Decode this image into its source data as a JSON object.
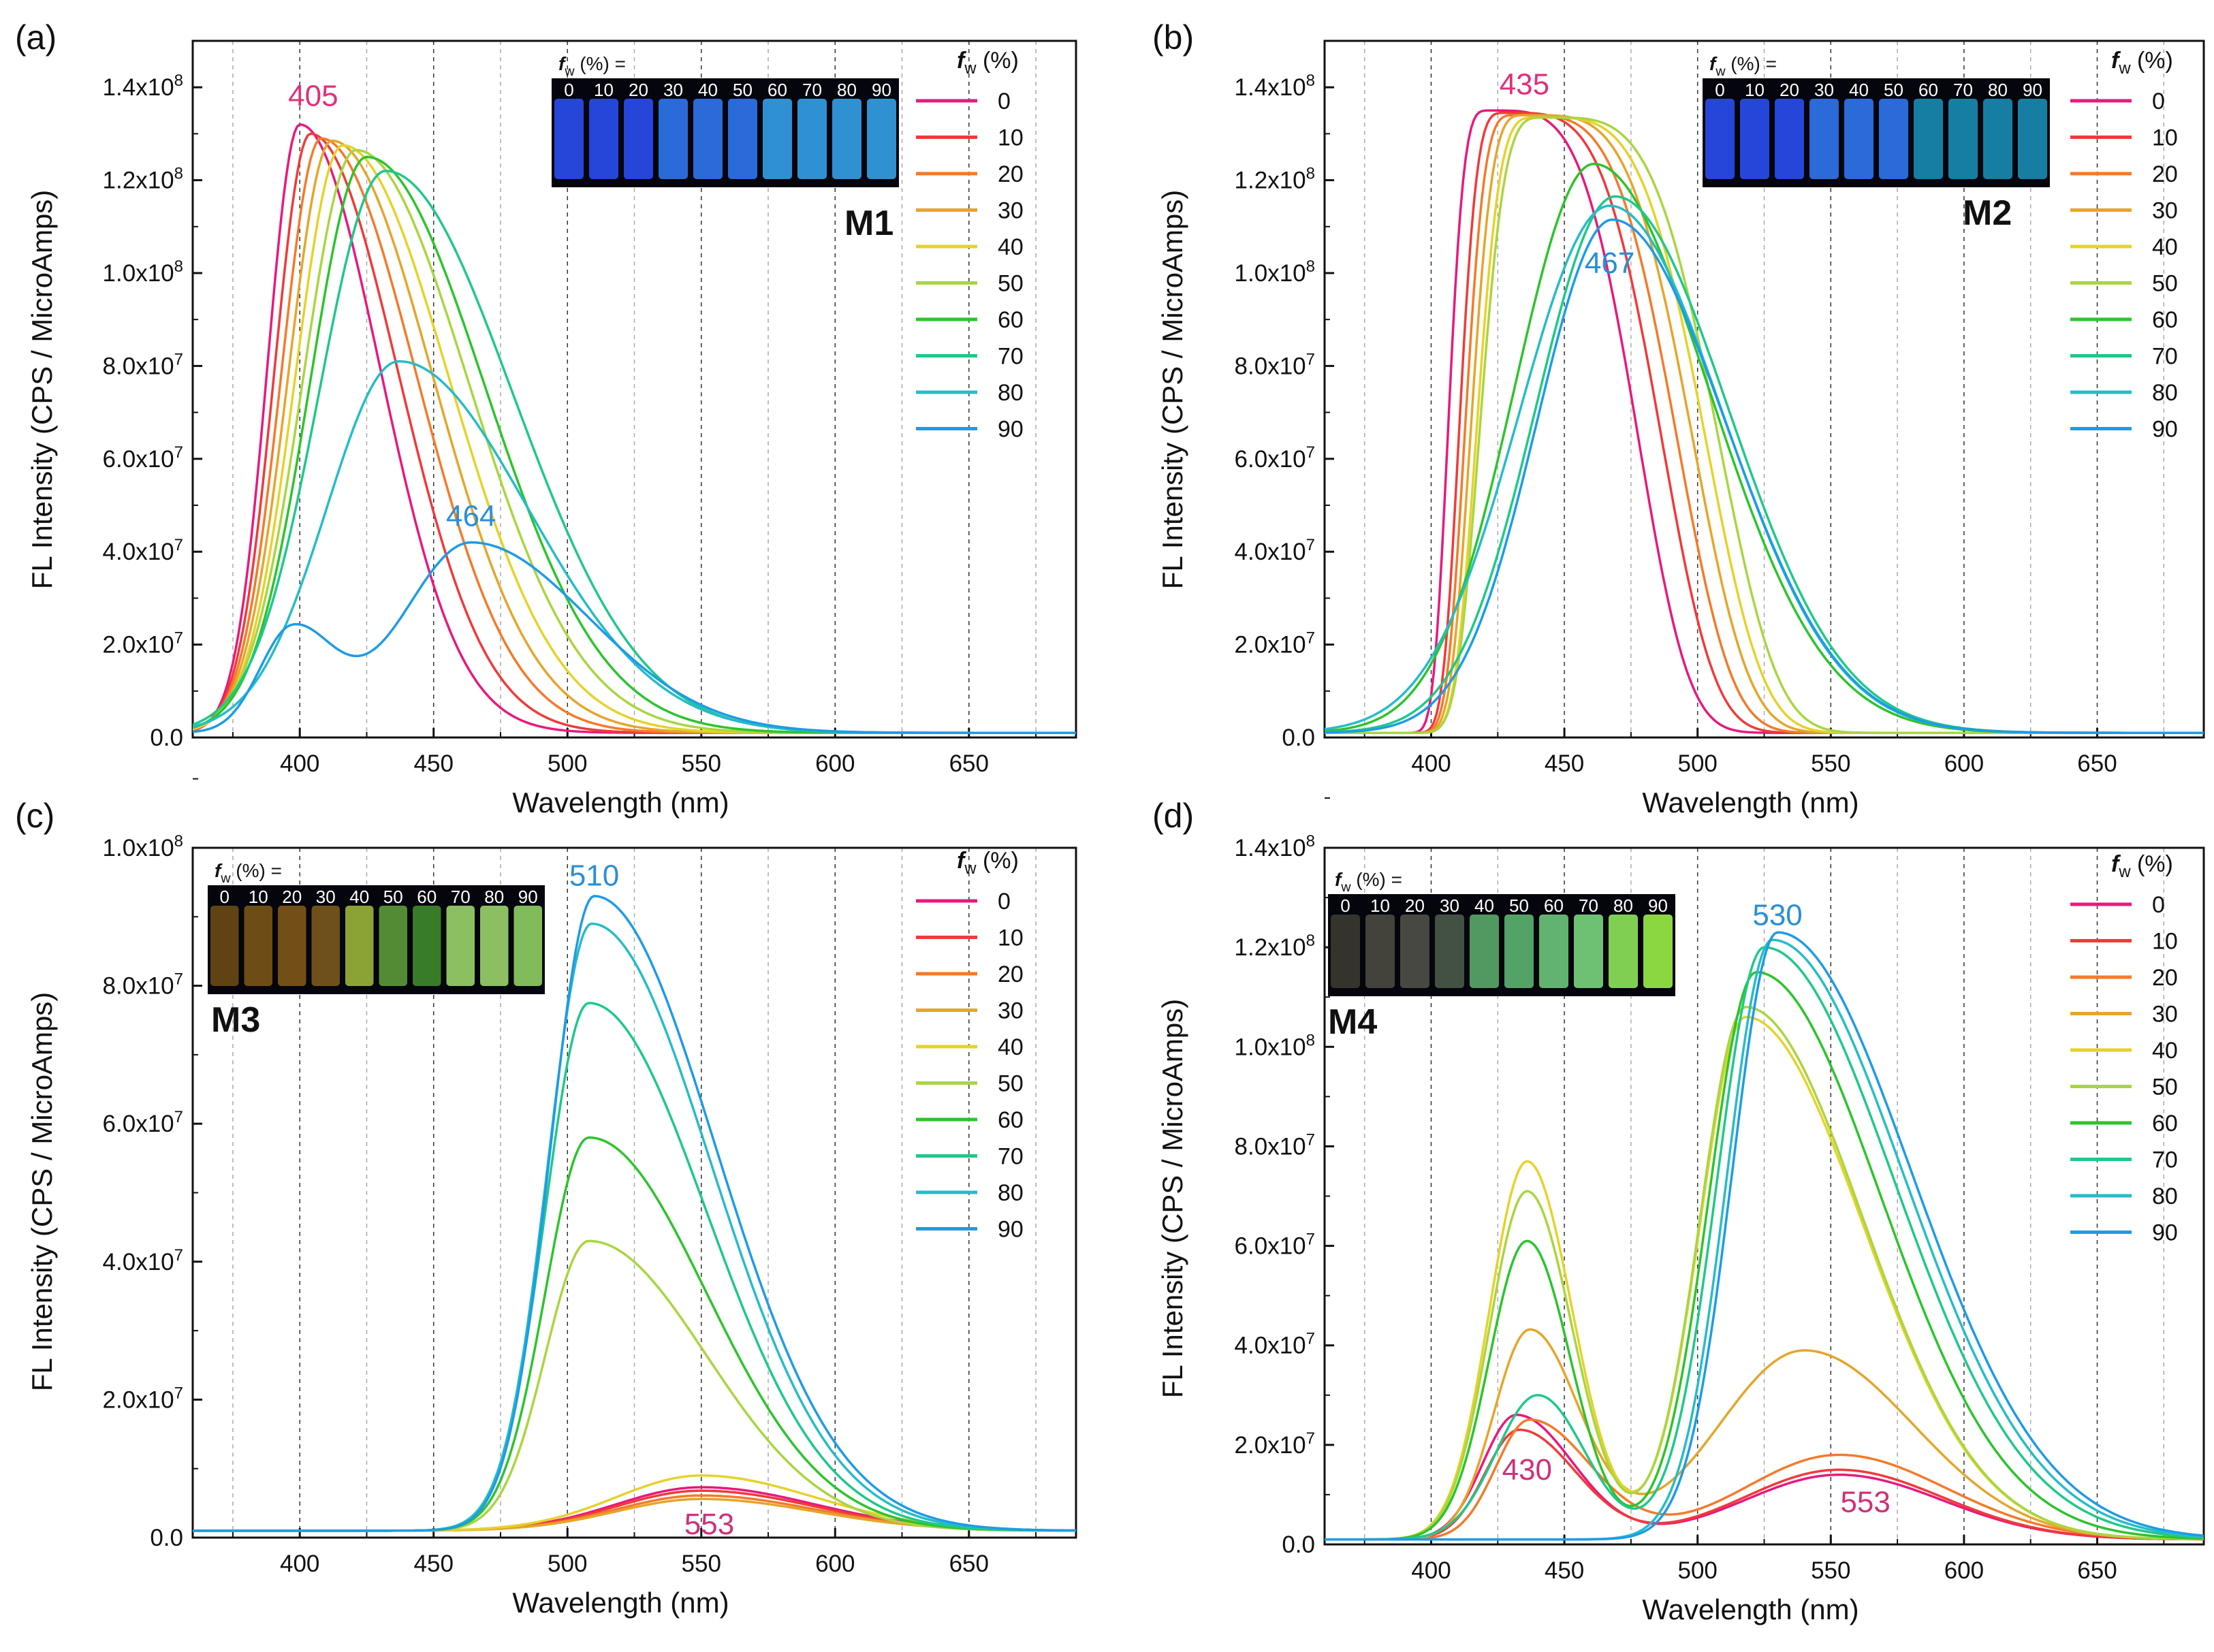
{
  "legend_title": "f_w (%)",
  "fw_levels": [
    "0",
    "10",
    "20",
    "30",
    "40",
    "50",
    "60",
    "70",
    "80",
    "90"
  ],
  "series_colors": [
    "#e8197c",
    "#f03a3a",
    "#f47a2a",
    "#e6a52a",
    "#e6d22a",
    "#a8d640",
    "#2cc42c",
    "#1fc889",
    "#26bcc8",
    "#1e9be6"
  ],
  "vial_labels": [
    "0",
    "10",
    "20",
    "30",
    "40",
    "50",
    "60",
    "70",
    "80",
    "90"
  ],
  "photo_caption": "f_w (%) =",
  "chart_data": [
    {
      "panel": "(a)",
      "sample": "M1",
      "type": "line",
      "xlabel": "Wavelength (nm)",
      "ylabel": "FL Intensity (CPS / MicroAmps)",
      "xlim": [
        360,
        690
      ],
      "ylim": [
        0,
        150000000.0
      ],
      "xticks": [
        "400",
        "450",
        "500",
        "550",
        "600",
        "650"
      ],
      "yticks": [
        "0.0",
        "2.0x10^7",
        "4.0x10^7",
        "6.0x10^7",
        "8.0x10^7",
        "1.0x10^8",
        "1.2x10^8",
        "1.4x10^8"
      ],
      "grid_x": [
        375,
        400,
        425,
        450,
        475,
        500,
        525,
        550,
        575,
        600,
        625,
        650,
        675
      ],
      "annotations": [
        {
          "text": "405",
          "x": 405,
          "y": 136000000.0,
          "color": "#e0307a"
        },
        {
          "text": "464",
          "x": 464,
          "y": 45500000.0,
          "color": "#2a8fd6"
        }
      ],
      "series": [
        {
          "name": "0",
          "peaks": [
            {
              "c": 400,
              "a": 131000000.0,
              "wl": 17,
              "wr": 42
            }
          ]
        },
        {
          "name": "10",
          "peaks": [
            {
              "c": 404,
              "a": 129000000.0,
              "wl": 19,
              "wr": 46
            }
          ]
        },
        {
          "name": "20",
          "peaks": [
            {
              "c": 408,
              "a": 128000000.0,
              "wl": 21,
              "wr": 50
            }
          ]
        },
        {
          "name": "30",
          "peaks": [
            {
              "c": 412,
              "a": 127500000.0,
              "wl": 23,
              "wr": 53
            }
          ]
        },
        {
          "name": "40",
          "peaks": [
            {
              "c": 416,
              "a": 126500000.0,
              "wl": 25,
              "wr": 56
            }
          ]
        },
        {
          "name": "50",
          "peaks": [
            {
              "c": 421,
              "a": 125500000.0,
              "wl": 28,
              "wr": 59
            }
          ]
        },
        {
          "name": "60",
          "peaks": [
            {
              "c": 425,
              "a": 124000000.0,
              "wl": 30,
              "wr": 62
            }
          ]
        },
        {
          "name": "70",
          "peaks": [
            {
              "c": 432,
              "a": 121000000.0,
              "wl": 35,
              "wr": 67
            }
          ]
        },
        {
          "name": "80",
          "peaks": [
            {
              "c": 437,
              "a": 80000000.0,
              "wl": 38,
              "wr": 68
            }
          ]
        },
        {
          "name": "90",
          "peaks": [
            {
              "c": 397,
              "a": 22000000.0,
              "wl": 17,
              "wr": 22
            },
            {
              "c": 464,
              "a": 41000000.0,
              "wl": 36,
              "wr": 62
            }
          ]
        }
      ]
    },
    {
      "panel": "(b)",
      "sample": "M2",
      "type": "line",
      "xlabel": "Wavelength (nm)",
      "ylabel": "FL Intensity (CPS / MicroAmps)",
      "xlim": [
        360,
        690
      ],
      "ylim": [
        0,
        150000000.0
      ],
      "xticks": [
        "400",
        "450",
        "500",
        "550",
        "600",
        "650"
      ],
      "yticks": [
        "0.0",
        "2.0x10^7",
        "4.0x10^7",
        "6.0x10^7",
        "8.0x10^7",
        "1.0x10^8",
        "1.2x10^8",
        "1.4x10^8"
      ],
      "grid_x": [
        375,
        400,
        425,
        450,
        475,
        500,
        525,
        550,
        575,
        600,
        625,
        650,
        675
      ],
      "annotations": [
        {
          "text": "435",
          "x": 435,
          "y": 138500000.0,
          "color": "#e0307a"
        },
        {
          "text": "467",
          "x": 467,
          "y": 100000000.0,
          "color": "#2a8fd6"
        }
      ],
      "series": [
        {
          "name": "0",
          "peaks": [
            {
              "c": 422,
              "a": 134000000.0,
              "wl": 17,
              "wr": 60,
              "p": 4
            }
          ]
        },
        {
          "name": "10",
          "peaks": [
            {
              "c": 428,
              "a": 133500000.0,
              "wl": 19,
              "wr": 63,
              "p": 4
            }
          ]
        },
        {
          "name": "20",
          "peaks": [
            {
              "c": 432,
              "a": 133000000.0,
              "wl": 21,
              "wr": 65,
              "p": 4
            }
          ]
        },
        {
          "name": "30",
          "peaks": [
            {
              "c": 436,
              "a": 133000000.0,
              "wl": 23,
              "wr": 67,
              "p": 4
            }
          ]
        },
        {
          "name": "40",
          "peaks": [
            {
              "c": 440,
              "a": 132500000.0,
              "wl": 25,
              "wr": 68,
              "p": 4
            }
          ]
        },
        {
          "name": "50",
          "peaks": [
            {
              "c": 443,
              "a": 132500000.0,
              "wl": 27,
              "wr": 70,
              "p": 4
            }
          ]
        },
        {
          "name": "60",
          "peaks": [
            {
              "c": 461,
              "a": 122500000.0,
              "wl": 42,
              "wr": 61
            }
          ]
        },
        {
          "name": "70",
          "peaks": [
            {
              "c": 469,
              "a": 115500000.0,
              "wl": 42,
              "wr": 60
            }
          ]
        },
        {
          "name": "80",
          "peaks": [
            {
              "c": 467,
              "a": 113500000.0,
              "wl": 48,
              "wr": 60
            }
          ]
        },
        {
          "name": "90",
          "peaks": [
            {
              "c": 468,
              "a": 110500000.0,
              "wl": 40,
              "wr": 60
            }
          ]
        }
      ]
    },
    {
      "panel": "(c)",
      "sample": "M3",
      "type": "line",
      "xlabel": "Wavelength (nm)",
      "ylabel": "FL Intensity (CPS / MicroAmps)",
      "xlim": [
        360,
        690
      ],
      "ylim": [
        0,
        100000000.0
      ],
      "xticks": [
        "400",
        "450",
        "500",
        "550",
        "600",
        "650"
      ],
      "yticks": [
        "0.0",
        "2.0x10^7",
        "4.0x10^7",
        "6.0x10^7",
        "8.0x10^7",
        "1.0x10^8"
      ],
      "grid_x": [
        375,
        400,
        425,
        450,
        475,
        500,
        525,
        550,
        575,
        600,
        625,
        650,
        675
      ],
      "annotations": [
        {
          "text": "510",
          "x": 510,
          "y": 94500000.0,
          "color": "#2a8fd6"
        },
        {
          "text": "553",
          "x": 553,
          "y": 500000.0,
          "color": "#d0307a"
        }
      ],
      "series": [
        {
          "name": "0",
          "peaks": [
            {
              "c": 550,
              "a": 6300000.0,
              "wl": 45,
              "wr": 60
            }
          ]
        },
        {
          "name": "10",
          "peaks": [
            {
              "c": 550,
              "a": 5800000.0,
              "wl": 45,
              "wr": 60
            }
          ]
        },
        {
          "name": "20",
          "peaks": [
            {
              "c": 550,
              "a": 5100000.0,
              "wl": 45,
              "wr": 60
            }
          ]
        },
        {
          "name": "30",
          "peaks": [
            {
              "c": 550,
              "a": 4600000.0,
              "wl": 45,
              "wr": 60
            }
          ]
        },
        {
          "name": "40",
          "peaks": [
            {
              "c": 550,
              "a": 8000000.0,
              "wl": 45,
              "wr": 60
            }
          ]
        },
        {
          "name": "50",
          "peaks": [
            {
              "c": 508,
              "a": 42000000.0,
              "wl": 23,
              "wr": 62
            }
          ]
        },
        {
          "name": "60",
          "peaks": [
            {
              "c": 508,
              "a": 57000000.0,
              "wl": 23,
              "wr": 62
            }
          ]
        },
        {
          "name": "70",
          "peaks": [
            {
              "c": 508,
              "a": 76500000.0,
              "wl": 23,
              "wr": 62
            }
          ]
        },
        {
          "name": "80",
          "peaks": [
            {
              "c": 509,
              "a": 88000000.0,
              "wl": 23,
              "wr": 63
            }
          ]
        },
        {
          "name": "90",
          "peaks": [
            {
              "c": 510,
              "a": 92000000.0,
              "wl": 23,
              "wr": 64
            }
          ]
        }
      ]
    },
    {
      "panel": "(d)",
      "sample": "M4",
      "type": "line",
      "xlabel": "Wavelength (nm)",
      "ylabel": "FL Intensity (CPS / MicroAmps)",
      "xlim": [
        360,
        690
      ],
      "ylim": [
        0,
        140000000.0
      ],
      "xticks": [
        "400",
        "450",
        "500",
        "550",
        "600",
        "650"
      ],
      "yticks": [
        "0.0",
        "2.0x10^7",
        "4.0x10^7",
        "6.0x10^7",
        "8.0x10^7",
        "1.0x10^8",
        "1.2x10^8",
        "1.4x10^8"
      ],
      "grid_x": [
        375,
        400,
        425,
        450,
        475,
        500,
        525,
        550,
        575,
        600,
        625,
        650,
        675
      ],
      "annotations": [
        {
          "text": "530",
          "x": 530,
          "y": 124500000.0,
          "color": "#2a8fd6"
        },
        {
          "text": "430",
          "x": 436,
          "y": 13000000.0,
          "color": "#d0307a"
        },
        {
          "text": "553",
          "x": 563,
          "y": 6500000.0,
          "color": "#d0307a"
        }
      ],
      "series": [
        {
          "name": "0",
          "peaks": [
            {
              "c": 432,
              "a": 25000000.0,
              "wl": 18,
              "wr": 30
            },
            {
              "c": 553,
              "a": 13000000.0,
              "wl": 50,
              "wr": 55
            }
          ]
        },
        {
          "name": "10",
          "peaks": [
            {
              "c": 433,
              "a": 22000000.0,
              "wl": 18,
              "wr": 30
            },
            {
              "c": 553,
              "a": 14000000.0,
              "wl": 50,
              "wr": 55
            }
          ]
        },
        {
          "name": "20",
          "peaks": [
            {
              "c": 437,
              "a": 24000000.0,
              "wl": 18,
              "wr": 32
            },
            {
              "c": 553,
              "a": 17000000.0,
              "wl": 50,
              "wr": 57
            }
          ]
        },
        {
          "name": "30",
          "peaks": [
            {
              "c": 437,
              "a": 42000000.0,
              "wl": 19,
              "wr": 26
            },
            {
              "c": 540,
              "a": 38000000.0,
              "wl": 45,
              "wr": 58
            }
          ]
        },
        {
          "name": "40",
          "peaks": [
            {
              "c": 436,
              "a": 76000000.0,
              "wl": 20,
              "wr": 24
            },
            {
              "c": 518,
              "a": 105000000.0,
              "wl": 24,
              "wr": 62
            }
          ]
        },
        {
          "name": "50",
          "peaks": [
            {
              "c": 436,
              "a": 70000000.0,
              "wl": 20,
              "wr": 24
            },
            {
              "c": 518,
              "a": 107000000.0,
              "wl": 24,
              "wr": 62
            }
          ]
        },
        {
          "name": "60",
          "peaks": [
            {
              "c": 436,
              "a": 60000000.0,
              "wl": 20,
              "wr": 23
            },
            {
              "c": 522,
              "a": 114000000.0,
              "wl": 25,
              "wr": 66
            }
          ]
        },
        {
          "name": "70",
          "peaks": [
            {
              "c": 440,
              "a": 29000000.0,
              "wl": 22,
              "wr": 25
            },
            {
              "c": 525,
              "a": 119000000.0,
              "wl": 25,
              "wr": 69
            }
          ]
        },
        {
          "name": "80",
          "peaks": [
            {
              "c": 528,
              "a": 120500000.0,
              "wl": 24,
              "wr": 70
            }
          ]
        },
        {
          "name": "90",
          "peaks": [
            {
              "c": 530,
              "a": 122000000.0,
              "wl": 24,
              "wr": 71
            }
          ]
        }
      ]
    }
  ]
}
